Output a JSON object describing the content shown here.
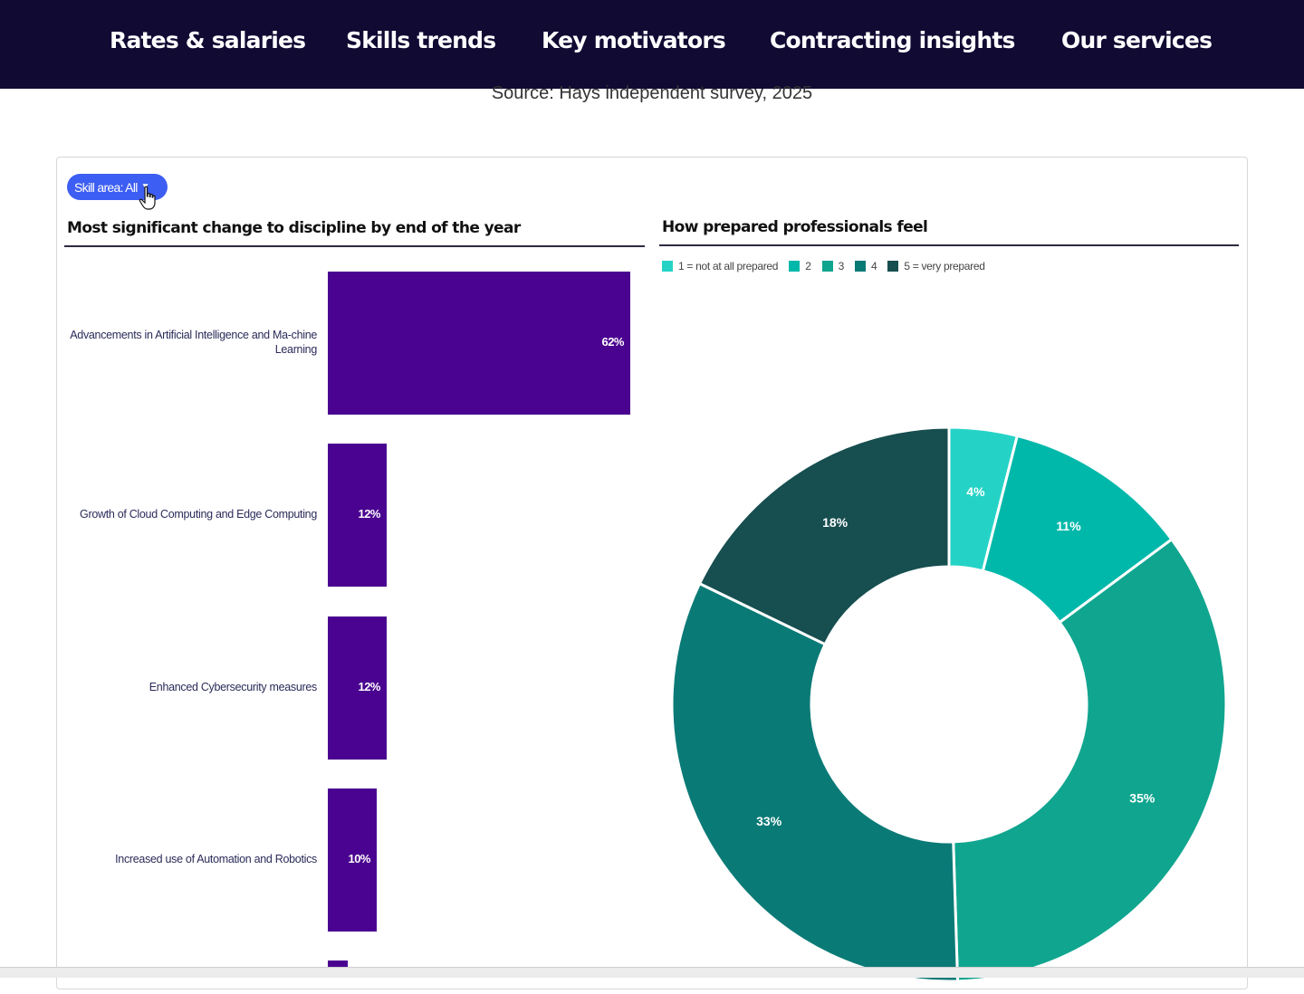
{
  "nav": {
    "items": [
      "Rates & salaries",
      "Skills trends",
      "Key motivators",
      "Contracting insights",
      "Our services"
    ]
  },
  "source_text": "Source: Hays independent survey, 2025",
  "filter": {
    "label": "Skill area: All"
  },
  "bar_panel": {
    "title": "Most significant change to discipline by end of the year"
  },
  "donut_panel": {
    "title": "How prepared professionals feel"
  },
  "colors": {
    "nav_bg": "#110a33",
    "bar": "#4a0390",
    "filter": "#3d5ef2",
    "slices": [
      "#25d3c6",
      "#00b8aa",
      "#10a58f",
      "#0a7a76",
      "#174e50"
    ]
  },
  "chart_data": [
    {
      "type": "bar",
      "orientation": "horizontal",
      "title": "Most significant change to discipline by end of the year",
      "categories": [
        "Advancements in Artificial Intelligence and Ma-chine Learning",
        "Growth of Cloud Computing and Edge Computing",
        "Enhanced Cybersecurity measures",
        "Increased use of Automation and Robotics"
      ],
      "values": [
        62,
        12,
        12,
        10
      ],
      "value_labels": [
        "62%",
        "12%",
        "12%",
        "10%"
      ],
      "unit": "%"
    },
    {
      "type": "pie",
      "variant": "donut",
      "title": "How prepared professionals feel",
      "legend": [
        "1 = not at all prepared",
        "2",
        "3",
        "4",
        "5 = very prepared"
      ],
      "legend_position": "top-left",
      "slices": [
        {
          "name": "1 = not at all prepared",
          "value": 4,
          "label": "4%"
        },
        {
          "name": "2",
          "value": 11,
          "label": "11%"
        },
        {
          "name": "3",
          "value": 35,
          "label": "35%"
        },
        {
          "name": "4",
          "value": 33,
          "label": "33%"
        },
        {
          "name": "5 = very prepared",
          "value": 18,
          "label": "18%"
        }
      ]
    }
  ]
}
